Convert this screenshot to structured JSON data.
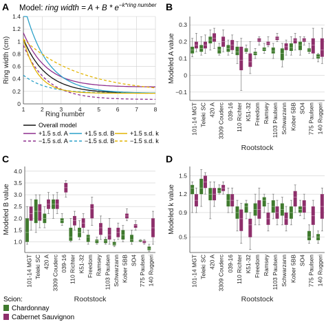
{
  "colors": {
    "chardonnay": "#3f7a2e",
    "cabernet": "#8e2f6b",
    "overall": "#111111",
    "A_line": "#8e2f8e",
    "B_line": "#2aa0c8",
    "k_line": "#e2b400",
    "grid": "#cfcfcf"
  },
  "chart_data": [
    {
      "panel": "A",
      "type": "line",
      "title": "Model: ring width = A + B * e^(−k*ring number)",
      "title_prefix": "Model: ",
      "title_formula": "ring width = A + B * e",
      "title_exponent": "−k*ring number",
      "xlabel": "Ring number",
      "ylabel": "Ring width (cm)",
      "xlim": [
        1,
        8
      ],
      "ylim": [
        0,
        1.4
      ],
      "xticks": [
        1,
        2,
        3,
        4,
        5,
        6,
        7,
        8
      ],
      "yticks": [
        0,
        0.2,
        0.4,
        0.6,
        0.8,
        1.0,
        1.2,
        1.4
      ],
      "ytick_labels": [
        "0",
        "0.2",
        "0.4",
        "0.6",
        "0.8",
        "1",
        "1.2",
        "1.4"
      ],
      "series": [
        {
          "name": "Overall model",
          "A": 0.17,
          "B": 0.87,
          "k": 0.83,
          "style": "solid",
          "color": "#111111"
        },
        {
          "name": "+1.5 s.d. A",
          "A": 0.27,
          "B": 0.87,
          "k": 0.83,
          "style": "solid",
          "color": "#8e2f8e"
        },
        {
          "name": "−1.5 s.d. A",
          "A": 0.07,
          "B": 0.87,
          "k": 0.83,
          "style": "dashed",
          "color": "#8e2f8e"
        },
        {
          "name": "+1.5 s.d. B",
          "A": 0.17,
          "B": 1.45,
          "k": 0.83,
          "style": "solid",
          "color": "#2aa0c8"
        },
        {
          "name": "−1.5 s.d. B",
          "A": 0.17,
          "B": 0.29,
          "k": 0.83,
          "style": "dashed",
          "color": "#2aa0c8"
        },
        {
          "name": "+1.5 s.d. k",
          "A": 0.17,
          "B": 0.87,
          "k": 1.33,
          "style": "solid",
          "color": "#e2b400"
        },
        {
          "name": "−1.5 s.d. k",
          "A": 0.17,
          "B": 0.87,
          "k": 0.33,
          "style": "dashed",
          "color": "#e2b400"
        }
      ]
    },
    {
      "panel": "B",
      "type": "box",
      "xlabel": "Rootstock",
      "ylabel": "Modeled A value",
      "ylim": [
        -0.15,
        0.35
      ],
      "yticks": [
        -0.1,
        0,
        0.1,
        0.2,
        0.3
      ],
      "ytick_labels": [
        "−0.1",
        "0",
        "0.1",
        "0.2",
        "0.3"
      ],
      "categories": [
        "101-14 MGT",
        "Teleki SC",
        "420 A",
        "3309 Couderc",
        "039-16",
        "110 Richter",
        "K51-32",
        "Freedom",
        "Ramsey",
        "1103 Paulsen",
        "Schwarzann",
        "Kober 5BB",
        "SO4",
        "775 Paulsen",
        "140 Ruggeri"
      ],
      "series": [
        {
          "name": "Chardonnay",
          "boxes": [
            [
              0.11,
              0.13,
              0.15,
              0.17,
              0.22
            ],
            [
              0.12,
              0.14,
              0.16,
              0.18,
              0.23
            ],
            [
              0.15,
              0.19,
              0.21,
              0.23,
              0.27
            ],
            [
              0.12,
              0.13,
              0.15,
              0.17,
              0.19
            ],
            [
              0.12,
              0.14,
              0.16,
              0.18,
              0.21
            ],
            [
              0.07,
              0.12,
              0.14,
              0.17,
              0.2
            ],
            [
              0.13,
              0.14,
              0.15,
              0.16,
              0.18
            ],
            [
              0.1,
              0.12,
              0.13,
              0.14,
              0.16
            ],
            [
              0.13,
              0.145,
              0.155,
              0.165,
              0.19
            ],
            [
              0.1,
              0.13,
              0.145,
              0.165,
              0.19
            ],
            [
              0.05,
              0.09,
              0.13,
              0.16,
              0.19
            ],
            [
              0.12,
              0.145,
              0.165,
              0.19,
              0.23
            ],
            [
              0.12,
              0.15,
              0.18,
              0.2,
              0.23
            ],
            [
              0.13,
              0.14,
              0.15,
              0.16,
              0.19
            ],
            [
              0.08,
              0.1,
              0.11,
              0.125,
              0.13
            ]
          ]
        },
        {
          "name": "Cabernet Sauvignon",
          "boxes": [
            [
              0.14,
              0.16,
              0.18,
              0.2,
              0.25
            ],
            [
              0.13,
              0.16,
              0.18,
              0.2,
              0.24
            ],
            [
              0.16,
              0.2,
              0.22,
              0.25,
              0.28
            ],
            [
              0.14,
              0.17,
              0.2,
              0.23,
              0.27
            ],
            [
              0.13,
              0.15,
              0.18,
              0.21,
              0.24
            ],
            [
              -0.09,
              0.03,
              0.09,
              0.17,
              0.22
            ],
            [
              0.01,
              0.05,
              0.08,
              0.13,
              0.2
            ],
            [
              0.18,
              0.2,
              0.21,
              0.22,
              0.23
            ],
            [
              0.17,
              0.18,
              0.19,
              0.2,
              0.23
            ],
            [
              0.2,
              0.21,
              0.22,
              0.23,
              0.25
            ],
            [
              0.12,
              0.15,
              0.17,
              0.19,
              0.21
            ],
            [
              0.15,
              0.19,
              0.21,
              0.22,
              0.25
            ],
            [
              0.18,
              0.2,
              0.21,
              0.22,
              0.23
            ],
            [
              0.1,
              0.13,
              0.18,
              0.22,
              0.28
            ],
            [
              0.07,
              0.11,
              0.15,
              0.22,
              0.28
            ]
          ]
        }
      ]
    },
    {
      "panel": "C",
      "type": "box",
      "xlabel": "Rootstock",
      "ylabel": "Modeled B value",
      "ylim": [
        0.55,
        4.2
      ],
      "yticks": [
        1.0,
        1.5,
        2.0,
        2.5,
        3.0,
        3.5,
        4.0
      ],
      "ytick_labels": [
        "1.0",
        "1.5",
        "2.0",
        "2.5",
        "3.0",
        "3.5",
        "4.0"
      ],
      "categories": [
        "101-14 MGT",
        "Teleki SC",
        "420 A",
        "3309 Couderc",
        "039-16",
        "110 Richter",
        "K51-32",
        "Freedom",
        "Ramsey",
        "1103 Paulsen",
        "Schwarzann",
        "Kober 5BB",
        "SO4",
        "775 Paulsen",
        "140 Ruggeri"
      ],
      "series": [
        {
          "name": "Chardonnay",
          "boxes": [
            [
              0.9,
              1.0,
              1.4,
              2.0,
              2.5
            ],
            [
              1.4,
              1.8,
              2.3,
              2.8,
              3.0
            ],
            [
              1.6,
              1.8,
              2.0,
              2.2,
              2.5
            ],
            [
              2.0,
              2.4,
              2.6,
              2.8,
              3.0
            ],
            [
              1.7,
              1.8,
              1.9,
              2.0,
              2.2
            ],
            [
              1.0,
              1.05,
              1.2,
              1.6,
              2.0
            ],
            [
              1.1,
              1.2,
              1.4,
              1.6,
              1.9
            ],
            [
              0.9,
              1.0,
              1.2,
              1.3,
              1.5
            ],
            [
              0.9,
              0.95,
              1.05,
              1.1,
              1.2
            ],
            [
              0.9,
              0.95,
              1.05,
              1.12,
              1.2
            ],
            [
              0.8,
              0.85,
              0.9,
              1.0,
              1.1
            ],
            [
              1.0,
              1.1,
              1.3,
              1.5,
              1.7
            ],
            [
              0.9,
              1.0,
              1.1,
              1.3,
              1.5
            ],
            [
              1.0,
              1.02,
              1.05,
              1.08,
              1.1
            ],
            [
              0.6,
              0.65,
              0.7,
              0.8,
              0.9
            ]
          ]
        },
        {
          "name": "Cabernet Sauvignon",
          "boxes": [
            [
              1.5,
              1.9,
              2.2,
              2.5,
              2.8
            ],
            [
              1.6,
              1.9,
              2.3,
              2.6,
              3.0
            ],
            [
              2.2,
              2.4,
              2.6,
              2.8,
              3.1
            ],
            [
              2.2,
              2.4,
              2.6,
              2.8,
              3.1
            ],
            [
              2.9,
              3.1,
              3.3,
              3.5,
              3.6
            ],
            [
              1.5,
              1.7,
              1.9,
              2.1,
              2.3
            ],
            [
              1.4,
              1.6,
              1.8,
              2.0,
              2.2
            ],
            [
              1.7,
              2.0,
              2.4,
              2.6,
              2.9
            ],
            [
              1.1,
              1.3,
              1.6,
              1.8,
              2.1
            ],
            [
              0.9,
              1.1,
              1.3,
              1.6,
              2.0
            ],
            [
              1.1,
              1.2,
              1.4,
              1.6,
              1.8
            ],
            [
              1.9,
              2.0,
              2.1,
              2.2,
              2.4
            ],
            [
              1.5,
              1.6,
              1.7,
              1.75,
              1.9
            ],
            [
              0.9,
              0.95,
              1.0,
              1.05,
              1.1
            ],
            [
              0.9,
              1.2,
              1.6,
              2.0,
              2.3
            ]
          ]
        }
      ]
    },
    {
      "panel": "D",
      "type": "box",
      "xlabel": "Rootstock",
      "ylabel": "Modeled k value",
      "ylim": [
        0.25,
        1.65
      ],
      "yticks": [
        0.5,
        0.9,
        1.2,
        1.5
      ],
      "ytick_labels": [
        "0.5",
        "0.9",
        "1.2",
        "1.5"
      ],
      "categories": [
        "101-14 MGT",
        "Teleki SC",
        "420 A",
        "3309 Couderc",
        "039-16",
        "110 Richter",
        "K51-32",
        "Freedom",
        "Ramsey",
        "1103 Paulsen",
        "Schwarzann",
        "Kober 5BB",
        "SO4",
        "775 Paulsen",
        "140 Ruggeri"
      ],
      "series": [
        {
          "name": "Chardonnay",
          "boxes": [
            [
              0.9,
              1.2,
              1.3,
              1.35,
              1.4
            ],
            [
              1.0,
              1.2,
              1.3,
              1.45,
              1.6
            ],
            [
              0.8,
              1.1,
              1.2,
              1.3,
              1.4
            ],
            [
              1.2,
              1.22,
              1.25,
              1.3,
              1.35
            ],
            [
              0.9,
              1.0,
              1.1,
              1.2,
              1.3
            ],
            [
              0.6,
              0.8,
              0.9,
              1.0,
              1.1
            ],
            [
              0.8,
              0.9,
              1.0,
              1.05,
              1.1
            ],
            [
              0.7,
              0.85,
              0.95,
              1.05,
              1.2
            ],
            [
              0.9,
              1.0,
              1.1,
              1.15,
              1.2
            ],
            [
              0.8,
              0.9,
              1.0,
              1.1,
              1.2
            ],
            [
              0.7,
              0.85,
              0.95,
              1.05,
              1.15
            ],
            [
              0.7,
              0.8,
              0.9,
              1.0,
              1.1
            ],
            [
              0.85,
              0.9,
              0.95,
              1.0,
              1.1
            ],
            [
              0.4,
              0.45,
              0.5,
              0.6,
              0.7
            ],
            [
              0.4,
              0.45,
              0.5,
              0.55,
              0.6
            ]
          ]
        },
        {
          "name": "Cabernet Sauvignon",
          "boxes": [
            [
              0.9,
              1.0,
              1.1,
              1.2,
              1.3
            ],
            [
              1.2,
              1.3,
              1.4,
              1.5,
              1.55
            ],
            [
              1.0,
              1.1,
              1.2,
              1.3,
              1.4
            ],
            [
              1.2,
              1.25,
              1.3,
              1.35,
              1.4
            ],
            [
              0.9,
              1.0,
              1.1,
              1.2,
              1.3
            ],
            [
              0.4,
              0.6,
              0.8,
              0.95,
              1.05
            ],
            [
              0.3,
              0.5,
              0.7,
              0.8,
              0.9
            ],
            [
              0.7,
              0.8,
              0.95,
              1.1,
              1.3
            ],
            [
              0.6,
              0.7,
              0.8,
              0.9,
              1.05
            ],
            [
              0.7,
              0.8,
              0.9,
              1.0,
              1.1
            ],
            [
              0.6,
              0.7,
              0.8,
              0.9,
              1.0
            ],
            [
              0.9,
              1.0,
              1.15,
              1.25,
              1.35
            ],
            [
              0.8,
              0.9,
              1.0,
              1.1,
              1.2
            ],
            [
              0.5,
              0.7,
              0.85,
              1.0,
              1.1
            ],
            [
              0.6,
              0.8,
              1.0,
              1.2,
              1.3
            ]
          ]
        }
      ]
    }
  ],
  "panels": {
    "A": {
      "letter": "A"
    },
    "B": {
      "letter": "B"
    },
    "C": {
      "letter": "C"
    },
    "D": {
      "letter": "D"
    }
  },
  "legend_A": {
    "overall": "Overall model",
    "plus_A": "+1.5 s.d. A",
    "minus_A": "−1.5 s.d. A",
    "plus_B": "+1.5 s.d. B",
    "minus_B": "−1.5 s.d. B",
    "plus_k": "+1.5 s.d. k",
    "minus_k": "−1.5 s.d. k"
  },
  "scion_legend": {
    "title": "Scion:",
    "items": [
      "Chardonnay",
      "Cabernet Sauvignon"
    ]
  }
}
